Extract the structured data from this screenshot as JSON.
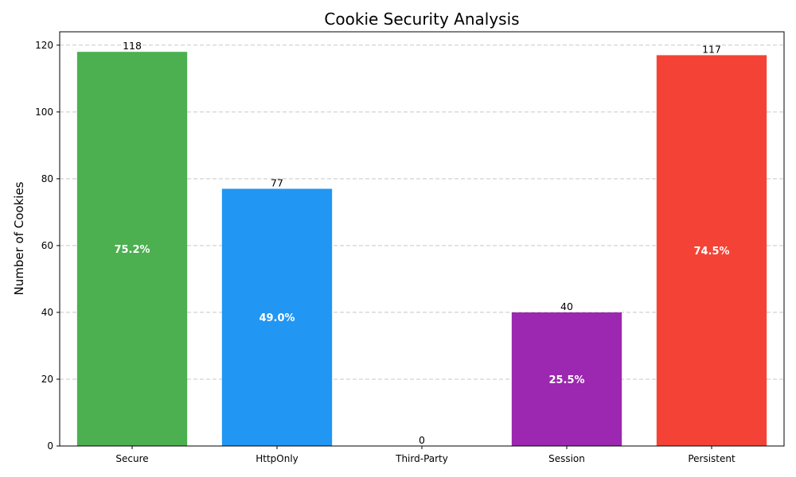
{
  "chart_data": {
    "type": "bar",
    "title": "Cookie Security Analysis",
    "xlabel": "",
    "ylabel": "Number of Cookies",
    "ylim": [
      0,
      124
    ],
    "yticks": [
      0,
      20,
      40,
      60,
      80,
      100,
      120
    ],
    "grid": "y-dashed",
    "categories": [
      "Secure",
      "HttpOnly",
      "Third-Party",
      "Session",
      "Persistent"
    ],
    "values": [
      118,
      77,
      0,
      40,
      117
    ],
    "percent_labels": [
      "75.2%",
      "49.0%",
      "",
      "25.5%",
      "74.5%"
    ],
    "colors": [
      "#4caf50",
      "#2196f3",
      "#ff9800",
      "#9c27b0",
      "#f44336"
    ]
  }
}
